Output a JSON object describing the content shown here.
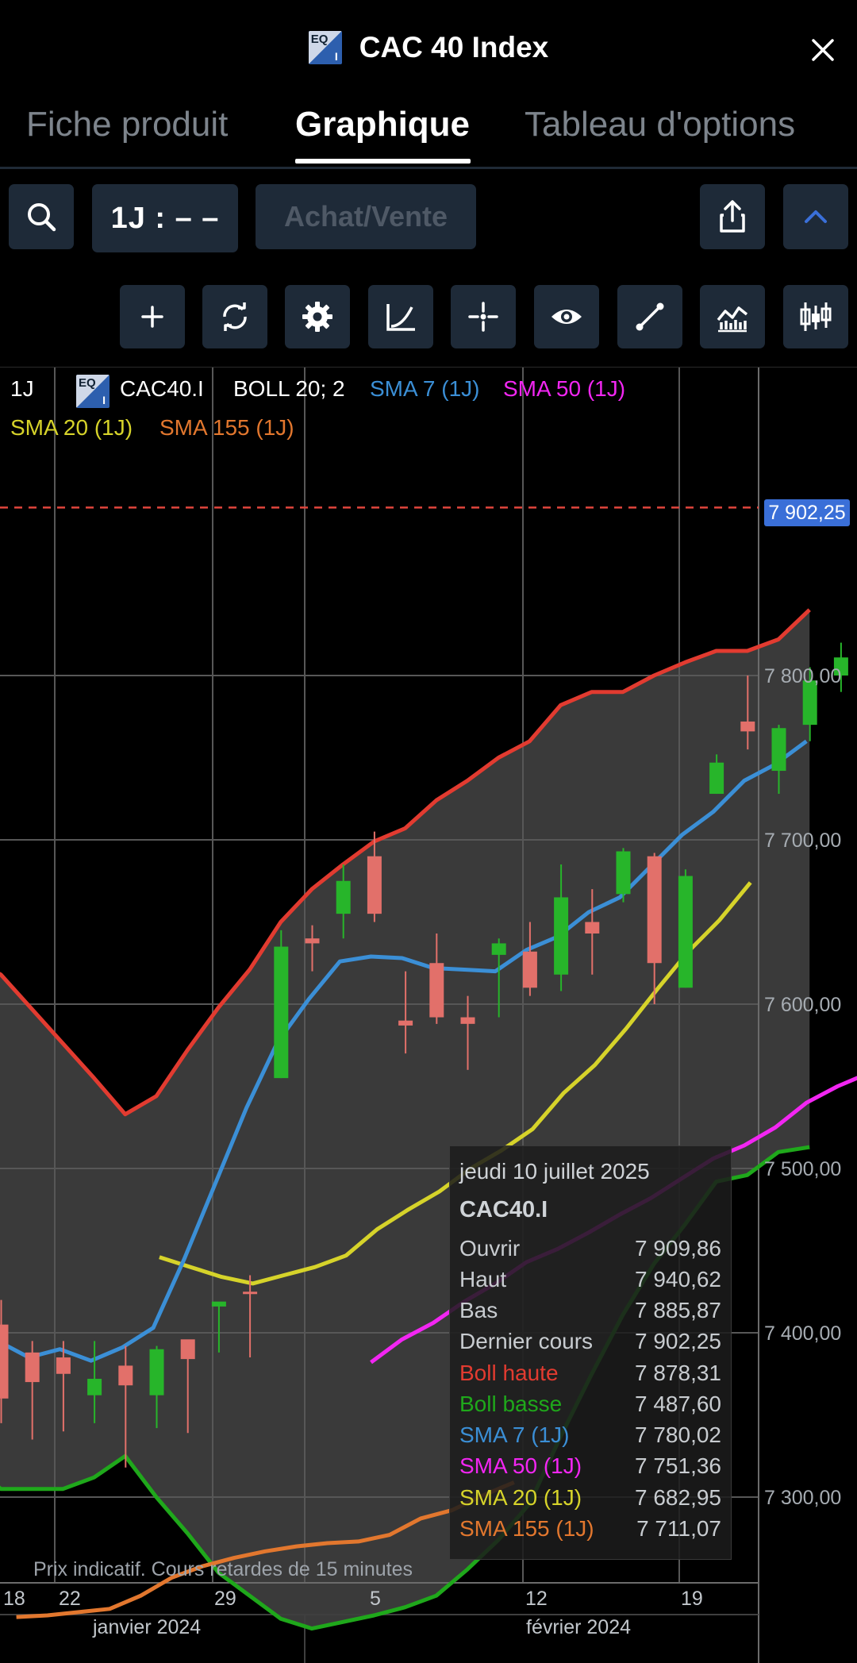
{
  "header": {
    "title": "CAC 40 Index",
    "logo_text_top": "EQ",
    "logo_text_bottom": "I"
  },
  "tabs": [
    {
      "label": "Fiche produit",
      "active": false
    },
    {
      "label": "Graphique",
      "active": true
    },
    {
      "label": "Tableau d'options",
      "active": false
    }
  ],
  "toolbar": {
    "period_label": "1J : – –",
    "trade_label": "Achat/Vente"
  },
  "tool_icons": [
    "plus-icon",
    "refresh-icon",
    "gear-icon",
    "curve-icon",
    "crosshair-icon",
    "eye-icon",
    "line-draw-icon",
    "indicator-icon",
    "candlestick-type-icon"
  ],
  "legend": {
    "period": "1J",
    "symbol": "CAC40.I",
    "boll": "BOLL 20; 2",
    "sma7": "SMA 7 (1J)",
    "sma50": "SMA 50 (1J)",
    "sma20": "SMA 20 (1J)",
    "sma155": "SMA 155 (1J)"
  },
  "colors": {
    "up": "#27b52a",
    "down": "#e2706a",
    "boll_upper": "#e23b30",
    "boll_lower": "#1fa81b",
    "sma7": "#3b8fd6",
    "sma50": "#f226f2",
    "sma20": "#d6d32a",
    "sma155": "#e2772e",
    "accent": "#3a6fd8"
  },
  "chart_data": {
    "type": "candlestick",
    "y_axis_labels": [
      "7 800,00",
      "7 700,00",
      "7 600,00",
      "7 500,00",
      "7 400,00",
      "7 300,00"
    ],
    "ylim": [
      7220,
      7950
    ],
    "x_tick_labels": [
      "18",
      "22",
      "29",
      "5",
      "12",
      "19"
    ],
    "x_period_labels": [
      "janvier 2024",
      "février 2024"
    ],
    "last_price": 7902.25,
    "last_price_label": "7 902,25",
    "candles": [
      {
        "o": 7405,
        "h": 7420,
        "l": 7345,
        "c": 7360
      },
      {
        "o": 7388,
        "h": 7395,
        "l": 7335,
        "c": 7370
      },
      {
        "o": 7385,
        "h": 7395,
        "l": 7340,
        "c": 7375
      },
      {
        "o": 7362,
        "h": 7395,
        "l": 7345,
        "c": 7372
      },
      {
        "o": 7380,
        "h": 7392,
        "l": 7318,
        "c": 7368
      },
      {
        "o": 7362,
        "h": 7392,
        "l": 7342,
        "c": 7390
      },
      {
        "o": 7396,
        "h": 7395,
        "l": 7339,
        "c": 7384
      },
      {
        "o": 7416,
        "h": 7418,
        "l": 7388,
        "c": 7419
      },
      {
        "o": 7425,
        "h": 7435,
        "l": 7385,
        "c": 7424
      },
      {
        "o": 7555,
        "h": 7645,
        "l": 7555,
        "c": 7635
      },
      {
        "o": 7640,
        "h": 7648,
        "l": 7620,
        "c": 7637
      },
      {
        "o": 7655,
        "h": 7685,
        "l": 7640,
        "c": 7675
      },
      {
        "o": 7690,
        "h": 7705,
        "l": 7650,
        "c": 7655
      },
      {
        "o": 7590,
        "h": 7620,
        "l": 7570,
        "c": 7587
      },
      {
        "o": 7625,
        "h": 7643,
        "l": 7588,
        "c": 7592
      },
      {
        "o": 7592,
        "h": 7605,
        "l": 7560,
        "c": 7588
      },
      {
        "o": 7630,
        "h": 7640,
        "l": 7592,
        "c": 7637
      },
      {
        "o": 7632,
        "h": 7650,
        "l": 7605,
        "c": 7610
      },
      {
        "o": 7618,
        "h": 7685,
        "l": 7608,
        "c": 7665
      },
      {
        "o": 7650,
        "h": 7670,
        "l": 7618,
        "c": 7643
      },
      {
        "o": 7667,
        "h": 7695,
        "l": 7662,
        "c": 7693
      },
      {
        "o": 7690,
        "h": 7692,
        "l": 7600,
        "c": 7625
      },
      {
        "o": 7610,
        "h": 7682,
        "l": 7610,
        "c": 7678
      },
      {
        "o": 7728,
        "h": 7752,
        "l": 7728,
        "c": 7747
      },
      {
        "o": 7772,
        "h": 7800,
        "l": 7755,
        "c": 7766
      },
      {
        "o": 7742,
        "h": 7770,
        "l": 7728,
        "c": 7768
      },
      {
        "o": 7770,
        "h": 7805,
        "l": 7760,
        "c": 7797
      },
      {
        "o": 7800,
        "h": 7820,
        "l": 7790,
        "c": 7811
      }
    ],
    "boll_upper": [
      7628,
      7618,
      7597,
      7576,
      7555,
      7533,
      7544,
      7572,
      7598,
      7621,
      7650,
      7670,
      7685,
      7699,
      7707,
      7724,
      7736,
      7750,
      7760,
      7782,
      7790,
      7790,
      7800,
      7808,
      7815,
      7815,
      7822,
      7840
    ],
    "boll_lower": [
      7322,
      7305,
      7305,
      7305,
      7312,
      7325,
      7300,
      7278,
      7254,
      7240,
      7226,
      7220,
      7224,
      7228,
      7233,
      7240,
      7256,
      7274,
      7296,
      7337,
      7375,
      7411,
      7442,
      7466,
      7492,
      7496,
      7510,
      7513
    ],
    "sma7": [
      7395,
      7385,
      7390,
      7383,
      7391,
      7403,
      7445,
      7491,
      7537,
      7577,
      7603,
      7626,
      7629,
      7628,
      7622,
      7621,
      7620,
      7633,
      7641,
      7656,
      7665,
      7684,
      7703,
      7717,
      7736,
      7746,
      7760
    ],
    "sma50": [
      7382,
      7396,
      7406,
      7419,
      7430,
      7443,
      7451,
      7461,
      7472,
      7482,
      7494,
      7506,
      7514,
      7525,
      7540,
      7550,
      7558
    ],
    "sma20": [
      7446,
      7440,
      7434,
      7430,
      7435,
      7440,
      7447,
      7463,
      7475,
      7486,
      7500,
      7511,
      7524,
      7546,
      7563,
      7585,
      7609,
      7632,
      7651,
      7674
    ],
    "sma155": [
      7227,
      7228,
      7230,
      7232,
      7240,
      7251,
      7258,
      7263,
      7267,
      7270,
      7272,
      7273,
      7277,
      7287,
      7292,
      7301,
      7309
    ]
  },
  "tooltip": {
    "date": "jeudi 10 juillet 2025",
    "symbol": "CAC40.I",
    "rows": [
      {
        "label": "Ouvrir",
        "value": "7 909,86",
        "color": "#c8ccd0"
      },
      {
        "label": "Haut",
        "value": "7 940,62",
        "color": "#c8ccd0"
      },
      {
        "label": "Bas",
        "value": "7 885,87",
        "color": "#c8ccd0"
      },
      {
        "label": "Dernier cours",
        "value": "7 902,25",
        "color": "#c8ccd0"
      },
      {
        "label": "Boll haute",
        "value": "7 878,31",
        "color": "#e23b30"
      },
      {
        "label": "Boll basse",
        "value": "7 487,60",
        "color": "#1fa81b"
      },
      {
        "label": "SMA 7 (1J)",
        "value": "7 780,02",
        "color": "#3b8fd6"
      },
      {
        "label": "SMA 50 (1J)",
        "value": "7 751,36",
        "color": "#f226f2"
      },
      {
        "label": "SMA 20 (1J)",
        "value": "7 682,95",
        "color": "#d6d32a"
      },
      {
        "label": "SMA 155 (1J)",
        "value": "7 711,07",
        "color": "#e2772e"
      }
    ]
  },
  "disclaimer": "Prix indicatif. Cours retardes de 15 minutes"
}
